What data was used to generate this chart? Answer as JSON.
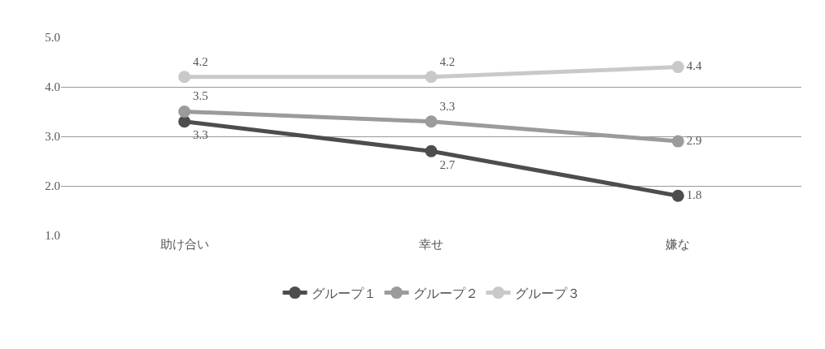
{
  "chart_data": {
    "type": "line",
    "categories": [
      "助け合い",
      "幸せ",
      "嫌な"
    ],
    "series": [
      {
        "name": "グループ１",
        "color": "#4d4d4f",
        "values": [
          3.3,
          2.7,
          1.8
        ]
      },
      {
        "name": "グループ２",
        "color": "#9b9b9b",
        "values": [
          3.5,
          3.3,
          2.9
        ]
      },
      {
        "name": "グループ３",
        "color": "#c9c9c9",
        "values": [
          4.2,
          4.2,
          4.4
        ]
      }
    ],
    "ylim": [
      1.0,
      5.0
    ],
    "yticks": [
      {
        "value": 1,
        "label": "1.0"
      },
      {
        "value": 2,
        "label": "2.0"
      },
      {
        "value": 3,
        "label": "3.0"
      },
      {
        "value": 4,
        "label": "4.0"
      },
      {
        "value": 5,
        "label": "5.0"
      }
    ],
    "grid": "y",
    "legend": "bottom",
    "marker": "circle",
    "line_style": "solid",
    "data_labels": true
  }
}
